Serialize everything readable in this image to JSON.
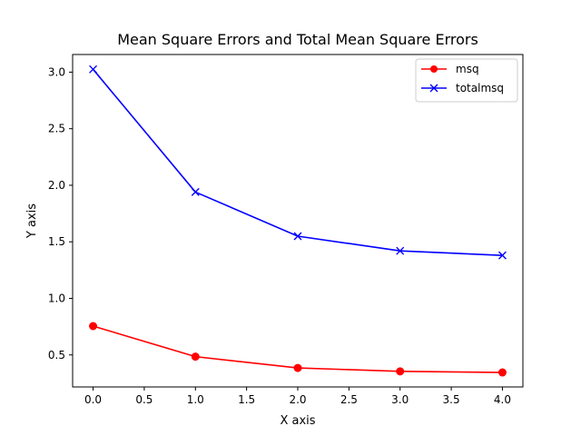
{
  "chart_data": {
    "type": "line",
    "title": "Mean Square Errors and Total Mean Square Errors",
    "xlabel": "X axis",
    "ylabel": "Y axis",
    "x": [
      0,
      1,
      2,
      3,
      4
    ],
    "xlim": [
      -0.2,
      4.2
    ],
    "ylim": [
      0.217,
      3.156
    ],
    "xticks": [
      0,
      0.5,
      1,
      1.5,
      2,
      2.5,
      3,
      3.5,
      4
    ],
    "xtick_labels": [
      "0.0",
      "0.5",
      "1.0",
      "1.5",
      "2.0",
      "2.5",
      "3.0",
      "3.5",
      "4.0"
    ],
    "yticks": [
      0.5,
      1.0,
      1.5,
      2.0,
      2.5,
      3.0
    ],
    "ytick_labels": [
      "0.5",
      "1.0",
      "1.5",
      "2.0",
      "2.5",
      "3.0"
    ],
    "grid": false,
    "legend_position": "top-right",
    "series": [
      {
        "name": "msq",
        "values": [
          0.755,
          0.485,
          0.385,
          0.355,
          0.345
        ],
        "color": "#ff0000",
        "marker": "circle"
      },
      {
        "name": "totalmsq",
        "values": [
          3.025,
          1.94,
          1.55,
          1.42,
          1.38
        ],
        "color": "#0000ff",
        "marker": "x"
      }
    ]
  }
}
